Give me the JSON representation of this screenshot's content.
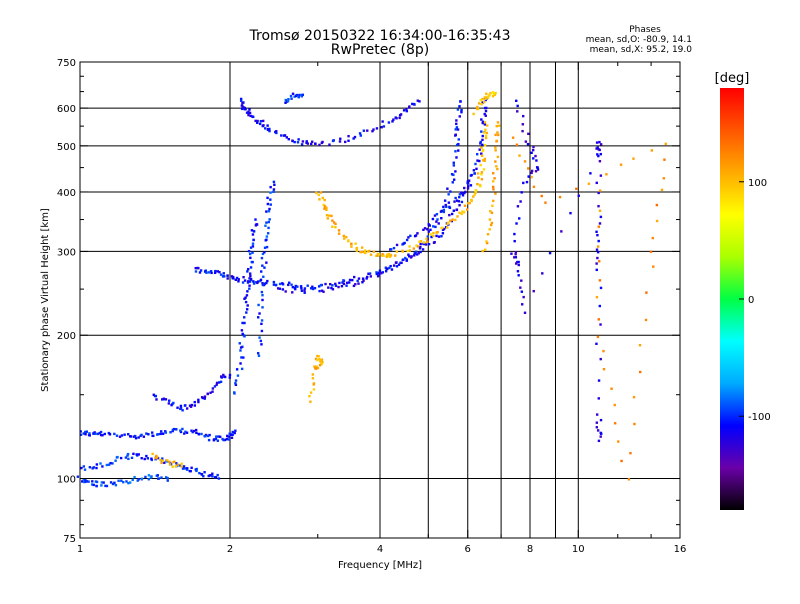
{
  "header": {
    "title_line1": "Tromsø 20150322 16:34:00-16:35:43",
    "title_line2": "RwPretec (8p)",
    "info_heading": "Phases",
    "info_line1": "mean, sd,O: -80.9, 14.1",
    "info_line2": "mean, sd,X:  95.2, 19.0"
  },
  "chart_data": {
    "type": "scatter",
    "title": "Tromsø 20150322 16:34:00-16:35:43",
    "subtitle": "RwPretec (8p)",
    "xlabel": "Frequency [MHz]",
    "ylabel": "Stationary phase Virtual Height [km]",
    "x_scale": "log",
    "y_scale": "log",
    "xlim": [
      1,
      16
    ],
    "ylim": [
      75,
      750
    ],
    "x_ticks": [
      1,
      2,
      4,
      6,
      8,
      10,
      16
    ],
    "x_tick_labels": [
      "1",
      "2",
      "4",
      "6",
      "8",
      "10",
      "16"
    ],
    "y_ticks": [
      75,
      100,
      200,
      300,
      400,
      500,
      600,
      750
    ],
    "y_tick_labels": [
      "75",
      "100",
      "200",
      "300",
      "400",
      "500",
      "600",
      "750"
    ],
    "grid": true,
    "colorbar": {
      "label": "[deg]",
      "range": [
        -180,
        180
      ],
      "tick_values": [
        100,
        0,
        -100
      ],
      "tick_labels": [
        "100",
        "0",
        "-100"
      ],
      "colors": [
        "#000000",
        "#6a00a8",
        "#0000ff",
        "#00aaff",
        "#00ffff",
        "#00ff44",
        "#aaff00",
        "#ffff00",
        "#ffaa00",
        "#ff5500",
        "#ff0000"
      ]
    },
    "traces": [
      {
        "phase": -105,
        "points": [
          [
            1.0,
            125
          ],
          [
            1.05,
            124
          ],
          [
            1.1,
            124
          ],
          [
            1.2,
            123
          ],
          [
            1.3,
            123
          ],
          [
            1.4,
            124
          ],
          [
            1.5,
            125
          ],
          [
            1.6,
            126
          ],
          [
            1.7,
            125
          ],
          [
            1.8,
            122
          ],
          [
            1.9,
            121
          ],
          [
            2.0,
            122
          ],
          [
            2.05,
            126
          ]
        ]
      },
      {
        "phase": -100,
        "points": [
          [
            1.0,
            105
          ],
          [
            1.1,
            106
          ],
          [
            1.2,
            110
          ],
          [
            1.3,
            112
          ],
          [
            1.4,
            110
          ],
          [
            1.5,
            108
          ],
          [
            1.6,
            106
          ],
          [
            1.7,
            104
          ],
          [
            1.8,
            102
          ],
          [
            1.9,
            100
          ]
        ]
      },
      {
        "phase": -95,
        "points": [
          [
            1.0,
            100
          ],
          [
            1.05,
            98
          ],
          [
            1.1,
            97
          ],
          [
            1.2,
            98
          ],
          [
            1.3,
            100
          ],
          [
            1.4,
            101
          ],
          [
            1.5,
            99
          ]
        ]
      },
      {
        "phase": -110,
        "points": [
          [
            1.4,
            150
          ],
          [
            1.5,
            145
          ],
          [
            1.6,
            140
          ],
          [
            1.7,
            143
          ],
          [
            1.8,
            150
          ],
          [
            1.9,
            160
          ],
          [
            2.0,
            165
          ]
        ]
      },
      {
        "phase": -105,
        "points": [
          [
            1.7,
            275
          ],
          [
            1.8,
            272
          ],
          [
            1.9,
            270
          ],
          [
            2.0,
            265
          ],
          [
            2.1,
            262
          ],
          [
            2.2,
            260
          ],
          [
            2.3,
            258
          ],
          [
            2.5,
            256
          ],
          [
            2.7,
            254
          ],
          [
            3.0,
            253
          ],
          [
            3.3,
            257
          ],
          [
            3.6,
            263
          ],
          [
            4.0,
            272
          ],
          [
            4.4,
            285
          ],
          [
            4.8,
            305
          ],
          [
            5.1,
            330
          ],
          [
            5.4,
            370
          ],
          [
            5.6,
            430
          ],
          [
            5.7,
            500
          ],
          [
            5.75,
            560
          ],
          [
            5.8,
            620
          ]
        ]
      },
      {
        "phase": -115,
        "points": [
          [
            2.5,
            250
          ],
          [
            2.8,
            248
          ],
          [
            3.2,
            250
          ],
          [
            3.6,
            258
          ],
          [
            4.0,
            270
          ],
          [
            4.4,
            285
          ],
          [
            4.8,
            300
          ],
          [
            5.2,
            320
          ],
          [
            5.5,
            345
          ],
          [
            5.8,
            380
          ],
          [
            6.0,
            420
          ]
        ]
      },
      {
        "phase": -108,
        "points": [
          [
            4.2,
            300
          ],
          [
            4.6,
            318
          ],
          [
            5.0,
            340
          ],
          [
            5.4,
            368
          ],
          [
            5.8,
            395
          ],
          [
            6.1,
            425
          ],
          [
            6.3,
            460
          ],
          [
            6.4,
            520
          ],
          [
            6.45,
            580
          ],
          [
            6.5,
            630
          ]
        ]
      },
      {
        "phase": -112,
        "points": [
          [
            2.1,
            620
          ],
          [
            2.15,
            600
          ],
          [
            2.2,
            580
          ],
          [
            2.3,
            560
          ],
          [
            2.4,
            540
          ],
          [
            2.6,
            520
          ],
          [
            2.8,
            505
          ],
          [
            3.0,
            505
          ],
          [
            3.4,
            515
          ],
          [
            3.8,
            535
          ],
          [
            4.2,
            565
          ],
          [
            4.5,
            590
          ],
          [
            4.8,
            620
          ]
        ]
      },
      {
        "phase": -100,
        "points": [
          [
            2.3,
            180
          ],
          [
            2.3,
            220
          ],
          [
            2.32,
            260
          ],
          [
            2.35,
            300
          ],
          [
            2.38,
            340
          ],
          [
            2.4,
            380
          ],
          [
            2.45,
            420
          ]
        ]
      },
      {
        "phase": -105,
        "points": [
          [
            2.05,
            150
          ],
          [
            2.1,
            175
          ],
          [
            2.12,
            200
          ],
          [
            2.15,
            230
          ],
          [
            2.18,
            260
          ],
          [
            2.2,
            290
          ],
          [
            2.22,
            320
          ],
          [
            2.25,
            350
          ]
        ]
      },
      {
        "phase": -100,
        "points": [
          [
            2.6,
            620
          ],
          [
            2.7,
            640
          ],
          [
            2.8,
            640
          ]
        ]
      },
      {
        "phase": 105,
        "points": [
          [
            3.0,
            400
          ],
          [
            3.1,
            370
          ],
          [
            3.2,
            345
          ],
          [
            3.4,
            320
          ],
          [
            3.6,
            305
          ],
          [
            3.8,
            298
          ],
          [
            4.0,
            295
          ],
          [
            4.2,
            295
          ]
        ]
      },
      {
        "phase": 100,
        "points": [
          [
            4.2,
            295
          ],
          [
            4.6,
            305
          ],
          [
            5.0,
            320
          ],
          [
            5.4,
            340
          ],
          [
            5.8,
            360
          ],
          [
            6.1,
            380
          ],
          [
            6.3,
            410
          ],
          [
            6.4,
            450
          ],
          [
            6.45,
            500
          ],
          [
            6.5,
            560
          ]
        ]
      },
      {
        "phase": 95,
        "points": [
          [
            6.2,
            590
          ],
          [
            6.4,
            620
          ],
          [
            6.6,
            640
          ],
          [
            6.8,
            640
          ]
        ]
      },
      {
        "phase": 110,
        "points": [
          [
            6.5,
            300
          ],
          [
            6.7,
            350
          ],
          [
            6.8,
            420
          ],
          [
            6.85,
            500
          ],
          [
            6.9,
            560
          ]
        ]
      },
      {
        "phase": 105,
        "points": [
          [
            3.0,
            180
          ],
          [
            3.05,
            175
          ],
          [
            2.95,
            170
          ],
          [
            2.9,
            145
          ]
        ]
      },
      {
        "phase": 105,
        "points": [
          [
            1.4,
            112
          ],
          [
            1.5,
            108
          ],
          [
            1.6,
            106
          ]
        ]
      },
      {
        "phase": -120,
        "points": [
          [
            7.5,
            620
          ],
          [
            8.0,
            500
          ],
          [
            8.3,
            450
          ],
          [
            7.8,
            420
          ],
          [
            7.4,
            300
          ],
          [
            7.6,
            280
          ],
          [
            7.8,
            225
          ],
          [
            11.0,
            480
          ],
          [
            11.0,
            510
          ],
          [
            11.0,
            340
          ],
          [
            11.0,
            275
          ],
          [
            11.0,
            135
          ],
          [
            11.0,
            120
          ]
        ]
      },
      {
        "phase": 120,
        "points": [
          [
            11.0,
            400
          ],
          [
            11.0,
            200
          ],
          [
            12.5,
            100
          ],
          [
            14.0,
            280
          ],
          [
            15.0,
            500
          ],
          [
            8.5,
            380
          ],
          [
            7.4,
            520
          ]
        ]
      }
    ]
  }
}
